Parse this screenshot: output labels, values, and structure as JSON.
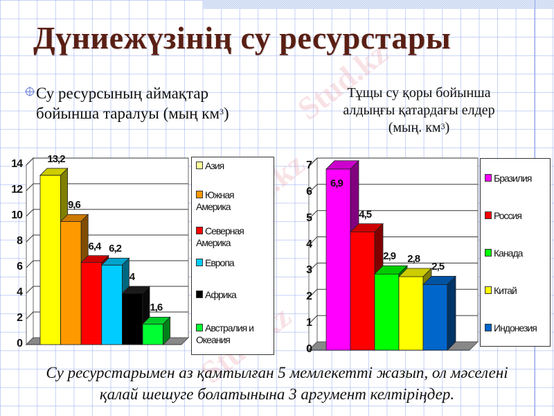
{
  "slide": {
    "title": "Дүниежүзінің су ресурстары",
    "left_subtitle_line1": "Су ресурсының аймақтар",
    "left_subtitle_line2": "бойынша таралуы (мың  км",
    "left_subtitle_sup": "3",
    "left_subtitle_close": ")",
    "right_subtitle_line1": "Тұщы су қоры бойынша",
    "right_subtitle_line2": "алдыңғы қатардағы елдер",
    "right_subtitle_line3": "(мың. км",
    "right_subtitle_sup": "3",
    "right_subtitle_close": ")",
    "footer_line1": "Су ресурстарымен аз қамтылған 5 мемлекетті жазып, ол мәселені",
    "footer_line2": "қалай шешуге болатынына 3 аргумент келтіріңдер.",
    "watermark": "Stud.kz",
    "title_color": "#5a1f14",
    "bullet_icon": "circle-cross-bullet-icon"
  },
  "chart_data": [
    {
      "type": "bar",
      "title": "Су ресурсының аймақтар бойынша таралуы (мың км3)",
      "categories": [
        "Азия",
        "Южная Америка",
        "Северная Америка",
        "Европа",
        "Африка",
        "Австралия и Океания"
      ],
      "values": [
        13.2,
        9.6,
        6.4,
        6.2,
        4,
        1.6
      ],
      "value_labels": [
        "13,2",
        "9,6",
        "6,4",
        "6,2",
        "4",
        "1,6"
      ],
      "colors": [
        "#ffff00",
        "#ff9900",
        "#ff0000",
        "#00ccff",
        "#000000",
        "#00ff33"
      ],
      "y_ticks": [
        "0",
        "2",
        "4",
        "6",
        "8",
        "10",
        "12",
        "14"
      ],
      "ylim": [
        0,
        14
      ],
      "xlabel": "",
      "ylabel": "",
      "grid": true,
      "legend_position": "right",
      "style": "3d-column"
    },
    {
      "type": "bar",
      "title": "Тұщы су қоры бойынша алдыңғы қатардағы елдер (мың. км3)",
      "categories": [
        "Бразилия",
        "Россия",
        "Канада",
        "Китай",
        "Индонезия"
      ],
      "values": [
        6.9,
        4.5,
        2.9,
        2.8,
        2.5
      ],
      "value_labels": [
        "6,9",
        "4,5",
        "2,9",
        "2,8",
        "2,5"
      ],
      "colors": [
        "#ff00ff",
        "#ff0000",
        "#00ff00",
        "#ffff00",
        "#0066cc"
      ],
      "y_ticks": [
        "0",
        "1",
        "2",
        "3",
        "4",
        "5",
        "6",
        "7"
      ],
      "ylim": [
        0,
        7
      ],
      "xlabel": "",
      "ylabel": "",
      "grid": true,
      "legend_position": "right",
      "style": "3d-column"
    }
  ]
}
